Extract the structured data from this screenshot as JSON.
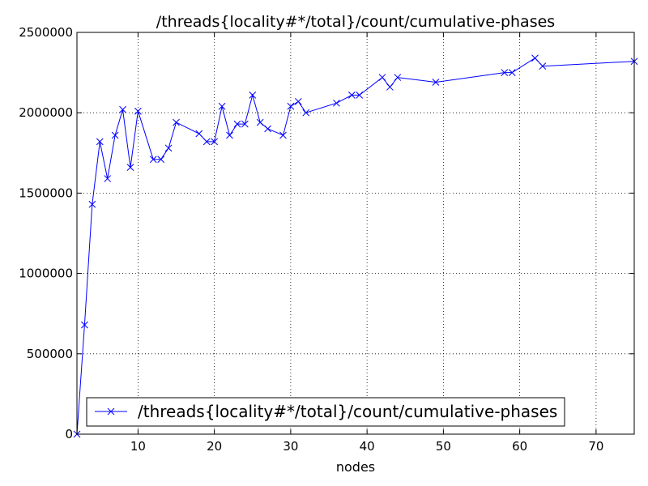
{
  "chart_data": {
    "type": "line",
    "title": "/threads{locality#*/total}/count/cumulative-phases",
    "xlabel": "nodes",
    "ylabel": "",
    "xlim": [
      2,
      75
    ],
    "ylim": [
      0,
      2500000
    ],
    "xticks": [
      10,
      20,
      30,
      40,
      50,
      60,
      70
    ],
    "yticks": [
      0,
      500000,
      1000000,
      1500000,
      2000000,
      2500000
    ],
    "xtick_labels": [
      "10",
      "20",
      "30",
      "40",
      "50",
      "60",
      "70"
    ],
    "ytick_labels": [
      "0",
      "500000",
      "1000000",
      "1500000",
      "2000000",
      "2500000"
    ],
    "grid": true,
    "legend_position": "lower-left",
    "series": [
      {
        "name": "/threads{locality#*/total}/count/cumulative-phases",
        "color": "#0000ff",
        "marker": "x",
        "x": [
          2,
          3,
          4,
          5,
          6,
          7,
          8,
          9,
          10,
          12,
          13,
          14,
          15,
          18,
          19,
          20,
          21,
          22,
          23,
          24,
          25,
          26,
          27,
          29,
          30,
          31,
          32,
          36,
          38,
          39,
          42,
          43,
          44,
          49,
          58,
          59,
          62,
          63,
          75
        ],
        "y": [
          0,
          680000,
          1430000,
          1820000,
          1590000,
          1860000,
          2020000,
          1660000,
          2010000,
          1710000,
          1710000,
          1780000,
          1940000,
          1870000,
          1820000,
          1820000,
          2040000,
          1860000,
          1930000,
          1930000,
          2110000,
          1940000,
          1900000,
          1860000,
          2040000,
          2070000,
          2000000,
          2060000,
          2110000,
          2110000,
          2220000,
          2160000,
          2220000,
          2190000,
          2250000,
          2250000,
          2340000,
          2290000,
          2320000
        ]
      }
    ]
  }
}
